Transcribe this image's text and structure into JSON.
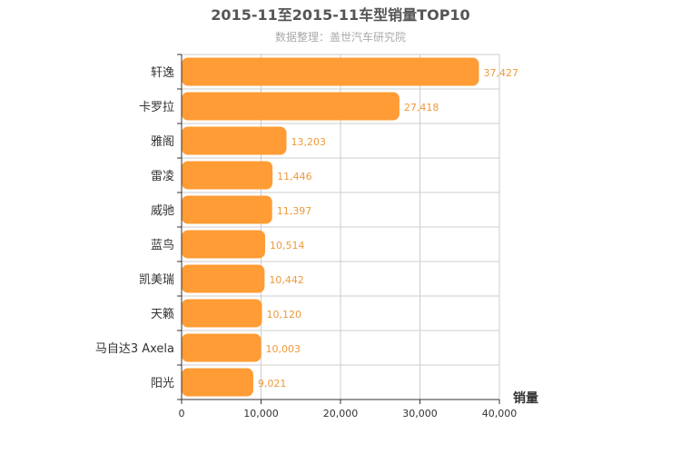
{
  "chart_data": {
    "type": "bar",
    "orientation": "horizontal",
    "title": "2015-11至2015-11车型销量TOP10",
    "subtitle": "数据整理：盖世汽车研究院",
    "categories": [
      "轩逸",
      "卡罗拉",
      "雅阁",
      "雷凌",
      "威驰",
      "蓝鸟",
      "凯美瑞",
      "天籁",
      "马自达3 Axela",
      "阳光"
    ],
    "values": [
      37427,
      27418,
      13203,
      11446,
      11397,
      10514,
      10442,
      10120,
      10003,
      9021
    ],
    "value_labels": [
      "37,427",
      "27,418",
      "13,203",
      "11,446",
      "11,397",
      "10,514",
      "10,442",
      "10,120",
      "10,003",
      "9,021"
    ],
    "xlabel": "销量",
    "ylabel": "",
    "xlim": [
      0,
      40000
    ],
    "x_ticks": [
      0,
      10000,
      20000,
      30000,
      40000
    ],
    "x_tick_labels": [
      "0",
      "10,000",
      "20,000",
      "30,000",
      "40,000"
    ],
    "grid": true,
    "colors": {
      "bar": "#ff9c35",
      "value_label": "#ee9a3a",
      "grid": "#cccccc",
      "axis": "#333333"
    }
  }
}
